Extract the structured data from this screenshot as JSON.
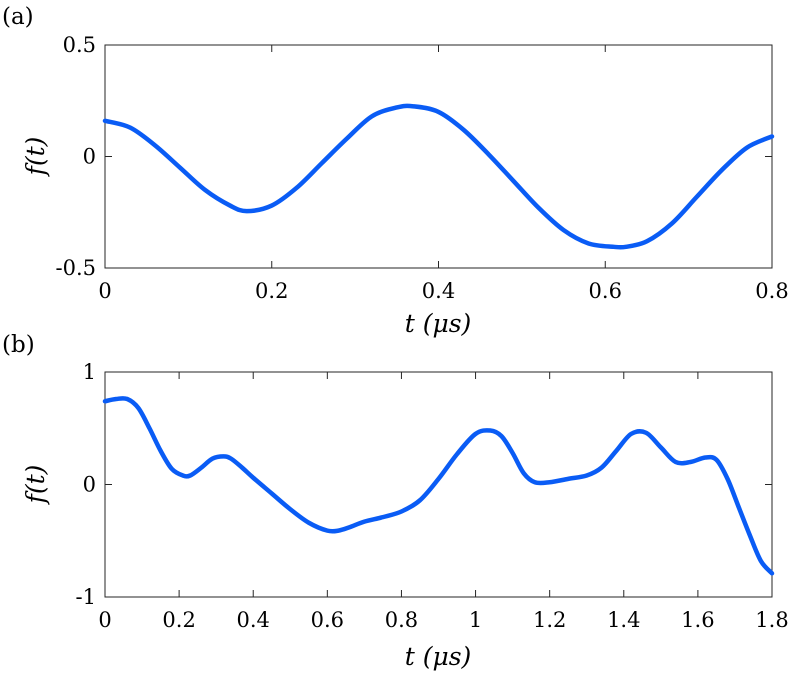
{
  "chart_data": [
    {
      "type": "line",
      "panel_label": "(a)",
      "xlabel": "t (μs)",
      "ylabel": "f(t)",
      "xlim": [
        0,
        0.8
      ],
      "ylim": [
        -0.5,
        0.5
      ],
      "xticks": [
        0,
        0.2,
        0.4,
        0.6,
        0.8
      ],
      "xtick_labels": [
        "0",
        "0.2",
        "0.4",
        "0.6",
        "0.8"
      ],
      "yticks": [
        -0.5,
        0,
        0.5
      ],
      "ytick_labels": [
        "-0.5",
        "0",
        "0.5"
      ],
      "grid": false,
      "line_color": "#0a5cf5",
      "series": [
        {
          "x": [
            0,
            0.03,
            0.06,
            0.09,
            0.12,
            0.15,
            0.17,
            0.2,
            0.23,
            0.26,
            0.29,
            0.32,
            0.35,
            0.37,
            0.4,
            0.43,
            0.46,
            0.49,
            0.52,
            0.55,
            0.58,
            0.61,
            0.625,
            0.65,
            0.68,
            0.71,
            0.74,
            0.77,
            0.8
          ],
          "y": [
            0.16,
            0.13,
            0.05,
            -0.05,
            -0.15,
            -0.22,
            -0.245,
            -0.22,
            -0.14,
            -0.03,
            0.08,
            0.18,
            0.22,
            0.225,
            0.2,
            0.12,
            0.01,
            -0.11,
            -0.23,
            -0.33,
            -0.39,
            -0.405,
            -0.405,
            -0.38,
            -0.3,
            -0.18,
            -0.06,
            0.04,
            0.09
          ]
        }
      ]
    },
    {
      "type": "line",
      "panel_label": "(b)",
      "xlabel": "t (μs)",
      "ylabel": "f(t)",
      "xlim": [
        0,
        1.8
      ],
      "ylim": [
        -1,
        1
      ],
      "xticks": [
        0,
        0.2,
        0.4,
        0.6,
        0.8,
        1,
        1.2,
        1.4,
        1.6,
        1.8
      ],
      "xtick_labels": [
        "0",
        "0.2",
        "0.4",
        "0.6",
        "0.8",
        "1",
        "1.2",
        "1.4",
        "1.6",
        "1.8"
      ],
      "yticks": [
        -1,
        0,
        1
      ],
      "ytick_labels": [
        "-1",
        "0",
        "1"
      ],
      "grid": false,
      "line_color": "#0a5cf5",
      "series": [
        {
          "x": [
            0,
            0.03,
            0.06,
            0.09,
            0.12,
            0.15,
            0.18,
            0.21,
            0.23,
            0.26,
            0.29,
            0.32,
            0.34,
            0.37,
            0.4,
            0.45,
            0.5,
            0.55,
            0.6,
            0.63,
            0.66,
            0.7,
            0.75,
            0.8,
            0.85,
            0.9,
            0.95,
            1.0,
            1.04,
            1.07,
            1.1,
            1.13,
            1.16,
            1.2,
            1.25,
            1.3,
            1.34,
            1.38,
            1.42,
            1.46,
            1.5,
            1.54,
            1.58,
            1.62,
            1.65,
            1.68,
            1.71,
            1.74,
            1.77,
            1.8
          ],
          "y": [
            0.74,
            0.76,
            0.76,
            0.68,
            0.5,
            0.3,
            0.14,
            0.08,
            0.08,
            0.15,
            0.23,
            0.25,
            0.23,
            0.15,
            0.06,
            -0.08,
            -0.22,
            -0.34,
            -0.41,
            -0.41,
            -0.38,
            -0.33,
            -0.29,
            -0.24,
            -0.14,
            0.05,
            0.27,
            0.45,
            0.48,
            0.43,
            0.28,
            0.1,
            0.02,
            0.02,
            0.05,
            0.08,
            0.15,
            0.3,
            0.45,
            0.46,
            0.33,
            0.2,
            0.2,
            0.24,
            0.22,
            0.05,
            -0.2,
            -0.45,
            -0.68,
            -0.79
          ]
        }
      ]
    }
  ]
}
